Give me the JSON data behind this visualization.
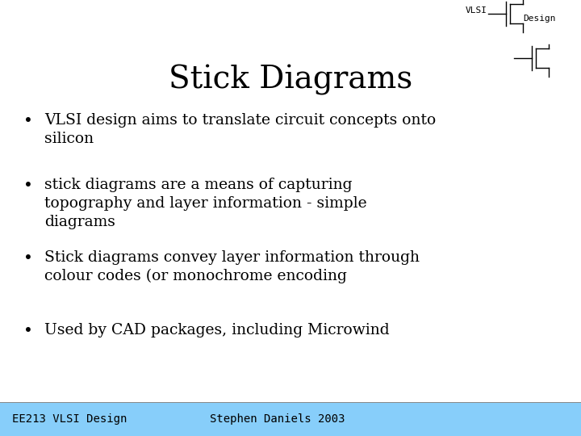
{
  "title": "Stick Diagrams",
  "vlsi_label": "VLSI",
  "design_label": "Design",
  "background_color": "#ffffff",
  "footer_bg_color": "#87cefa",
  "footer_text_left": "EE213 VLSI Design",
  "footer_text_center": "Stephen Daniels 2003",
  "bullet_points": [
    "VLSI design aims to translate circuit concepts onto\nsilicon",
    "stick diagrams are a means of capturing\ntopography and layer information - simple\ndiagrams",
    "Stick diagrams convey layer information through\ncolour codes (or monochrome encoding",
    "Used by CAD packages, including Microwind"
  ],
  "title_fontsize": 28,
  "body_fontsize": 13.5,
  "footer_fontsize": 10,
  "logo_fontsize": 8,
  "text_color": "#000000",
  "footer_text_color": "#000000"
}
